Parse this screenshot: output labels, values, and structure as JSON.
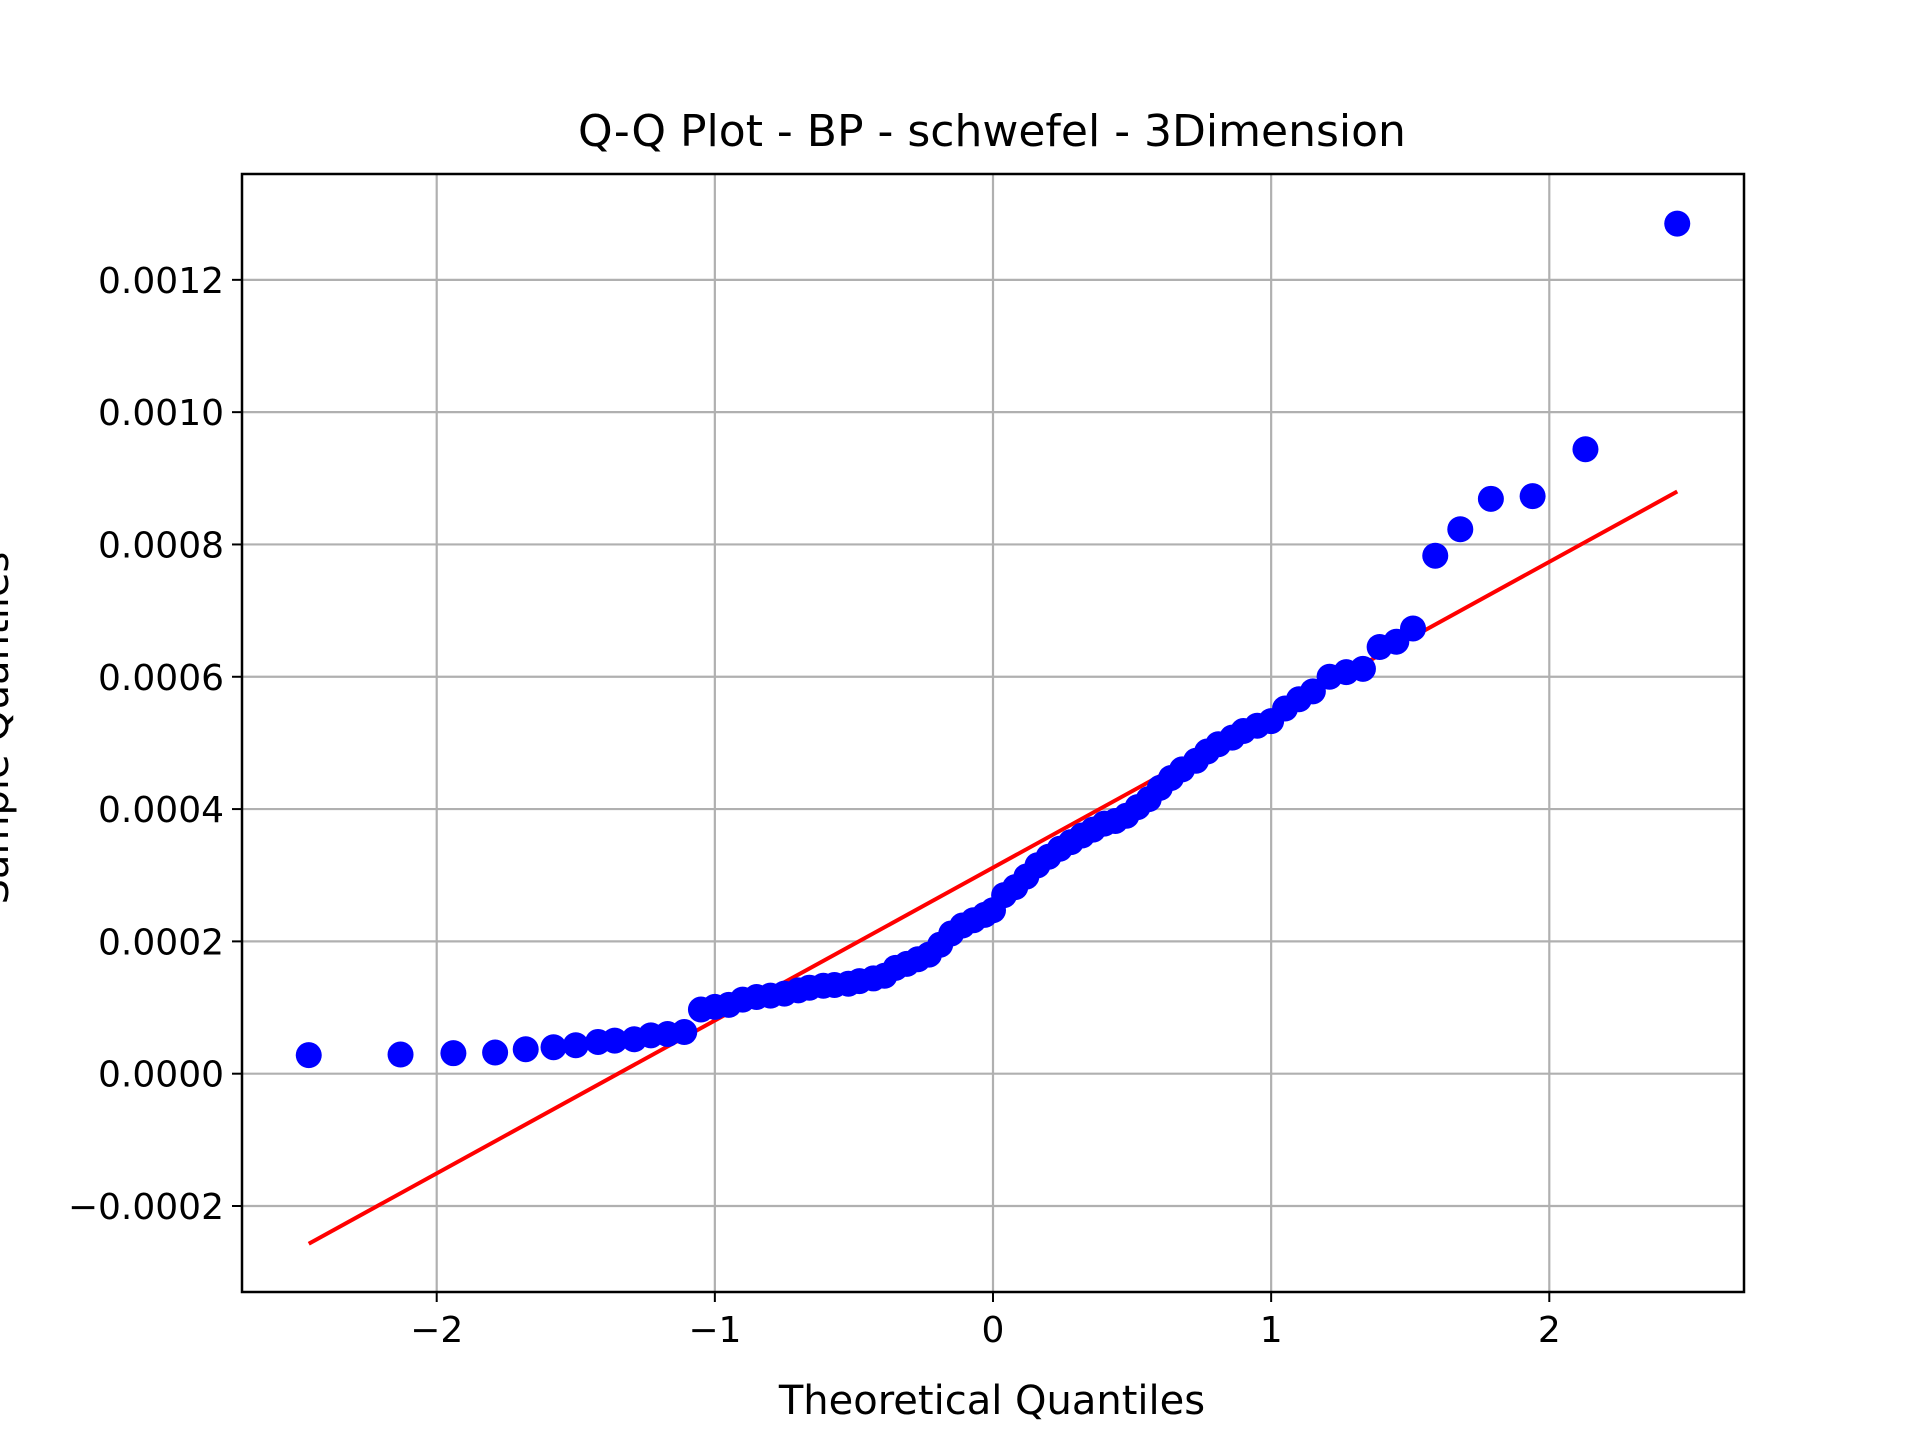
{
  "chart_data": {
    "type": "scatter",
    "title": "Q-Q Plot - BP - schwefel - 3Dimension",
    "xlabel": "Theoretical Quantiles",
    "ylabel": "Sample Quantiles",
    "xlim": [
      -2.7,
      2.7
    ],
    "ylim": [
      -0.00033,
      0.00136
    ],
    "grid": true,
    "x_ticks": [
      -2,
      -1,
      0,
      1,
      2
    ],
    "x_tick_labels": [
      "−2",
      "−1",
      "0",
      "1",
      "2"
    ],
    "y_ticks": [
      -0.0002,
      0.0,
      0.0002,
      0.0004,
      0.0006,
      0.0008,
      0.001,
      0.0012
    ],
    "y_tick_labels": [
      "−0.0002",
      "0.0000",
      "0.0002",
      "0.0004",
      "0.0006",
      "0.0008",
      "0.0010",
      "0.0012"
    ],
    "series": [
      {
        "kind": "points",
        "color": "#0000ff",
        "points": [
          [
            -2.46,
            2.8e-05
          ],
          [
            -2.13,
            2.9e-05
          ],
          [
            -1.94,
            3.1e-05
          ],
          [
            -1.79,
            3.2e-05
          ],
          [
            -1.68,
            3.7e-05
          ],
          [
            -1.58,
            4e-05
          ],
          [
            -1.5,
            4.3e-05
          ],
          [
            -1.42,
            4.8e-05
          ],
          [
            -1.36,
            5e-05
          ],
          [
            -1.29,
            5.2e-05
          ],
          [
            -1.23,
            5.8e-05
          ],
          [
            -1.17,
            6e-05
          ],
          [
            -1.11,
            6.3e-05
          ],
          [
            -1.05,
            9.7e-05
          ],
          [
            -1.0,
            0.000101
          ],
          [
            -0.95,
            0.000104
          ],
          [
            -0.9,
            0.000112
          ],
          [
            -0.85,
            0.000116
          ],
          [
            -0.8,
            0.000118
          ],
          [
            -0.75,
            0.000121
          ],
          [
            -0.7,
            0.000126
          ],
          [
            -0.66,
            0.00013
          ],
          [
            -0.61,
            0.000133
          ],
          [
            -0.57,
            0.000134
          ],
          [
            -0.52,
            0.000136
          ],
          [
            -0.48,
            0.00014
          ],
          [
            -0.43,
            0.000144
          ],
          [
            -0.39,
            0.000148
          ],
          [
            -0.35,
            0.00016
          ],
          [
            -0.31,
            0.000166
          ],
          [
            -0.27,
            0.000173
          ],
          [
            -0.23,
            0.00018
          ],
          [
            -0.19,
            0.000195
          ],
          [
            -0.15,
            0.000212
          ],
          [
            -0.11,
            0.000224
          ],
          [
            -0.07,
            0.000232
          ],
          [
            -0.03,
            0.00024
          ],
          [
            0.0,
            0.000247
          ],
          [
            0.04,
            0.00027
          ],
          [
            0.08,
            0.000282
          ],
          [
            0.12,
            0.000298
          ],
          [
            0.16,
            0.000315
          ],
          [
            0.2,
            0.000328
          ],
          [
            0.24,
            0.00034
          ],
          [
            0.28,
            0.00035
          ],
          [
            0.32,
            0.00036
          ],
          [
            0.36,
            0.000369
          ],
          [
            0.4,
            0.000378
          ],
          [
            0.44,
            0.000382
          ],
          [
            0.48,
            0.00039
          ],
          [
            0.52,
            0.000403
          ],
          [
            0.56,
            0.000415
          ],
          [
            0.6,
            0.000432
          ],
          [
            0.64,
            0.000447
          ],
          [
            0.68,
            0.00046
          ],
          [
            0.73,
            0.000473
          ],
          [
            0.77,
            0.000487
          ],
          [
            0.81,
            0.000498
          ],
          [
            0.86,
            0.000508
          ],
          [
            0.9,
            0.000518
          ],
          [
            0.95,
            0.000526
          ],
          [
            1.0,
            0.000533
          ],
          [
            1.05,
            0.000552
          ],
          [
            1.1,
            0.000566
          ],
          [
            1.15,
            0.000578
          ],
          [
            1.21,
            0.0006
          ],
          [
            1.27,
            0.000607
          ],
          [
            1.33,
            0.000612
          ],
          [
            1.39,
            0.000645
          ],
          [
            1.45,
            0.000653
          ],
          [
            1.51,
            0.000673
          ],
          [
            1.59,
            0.000783
          ],
          [
            1.68,
            0.000823
          ],
          [
            1.79,
            0.000869
          ],
          [
            1.94,
            0.000873
          ],
          [
            2.13,
            0.000944
          ],
          [
            2.46,
            0.001285
          ]
        ]
      },
      {
        "kind": "fit-line",
        "color": "#ff0000",
        "x": [
          -2.46,
          2.46
        ],
        "y": [
          -0.000257,
          0.00088
        ]
      }
    ]
  }
}
